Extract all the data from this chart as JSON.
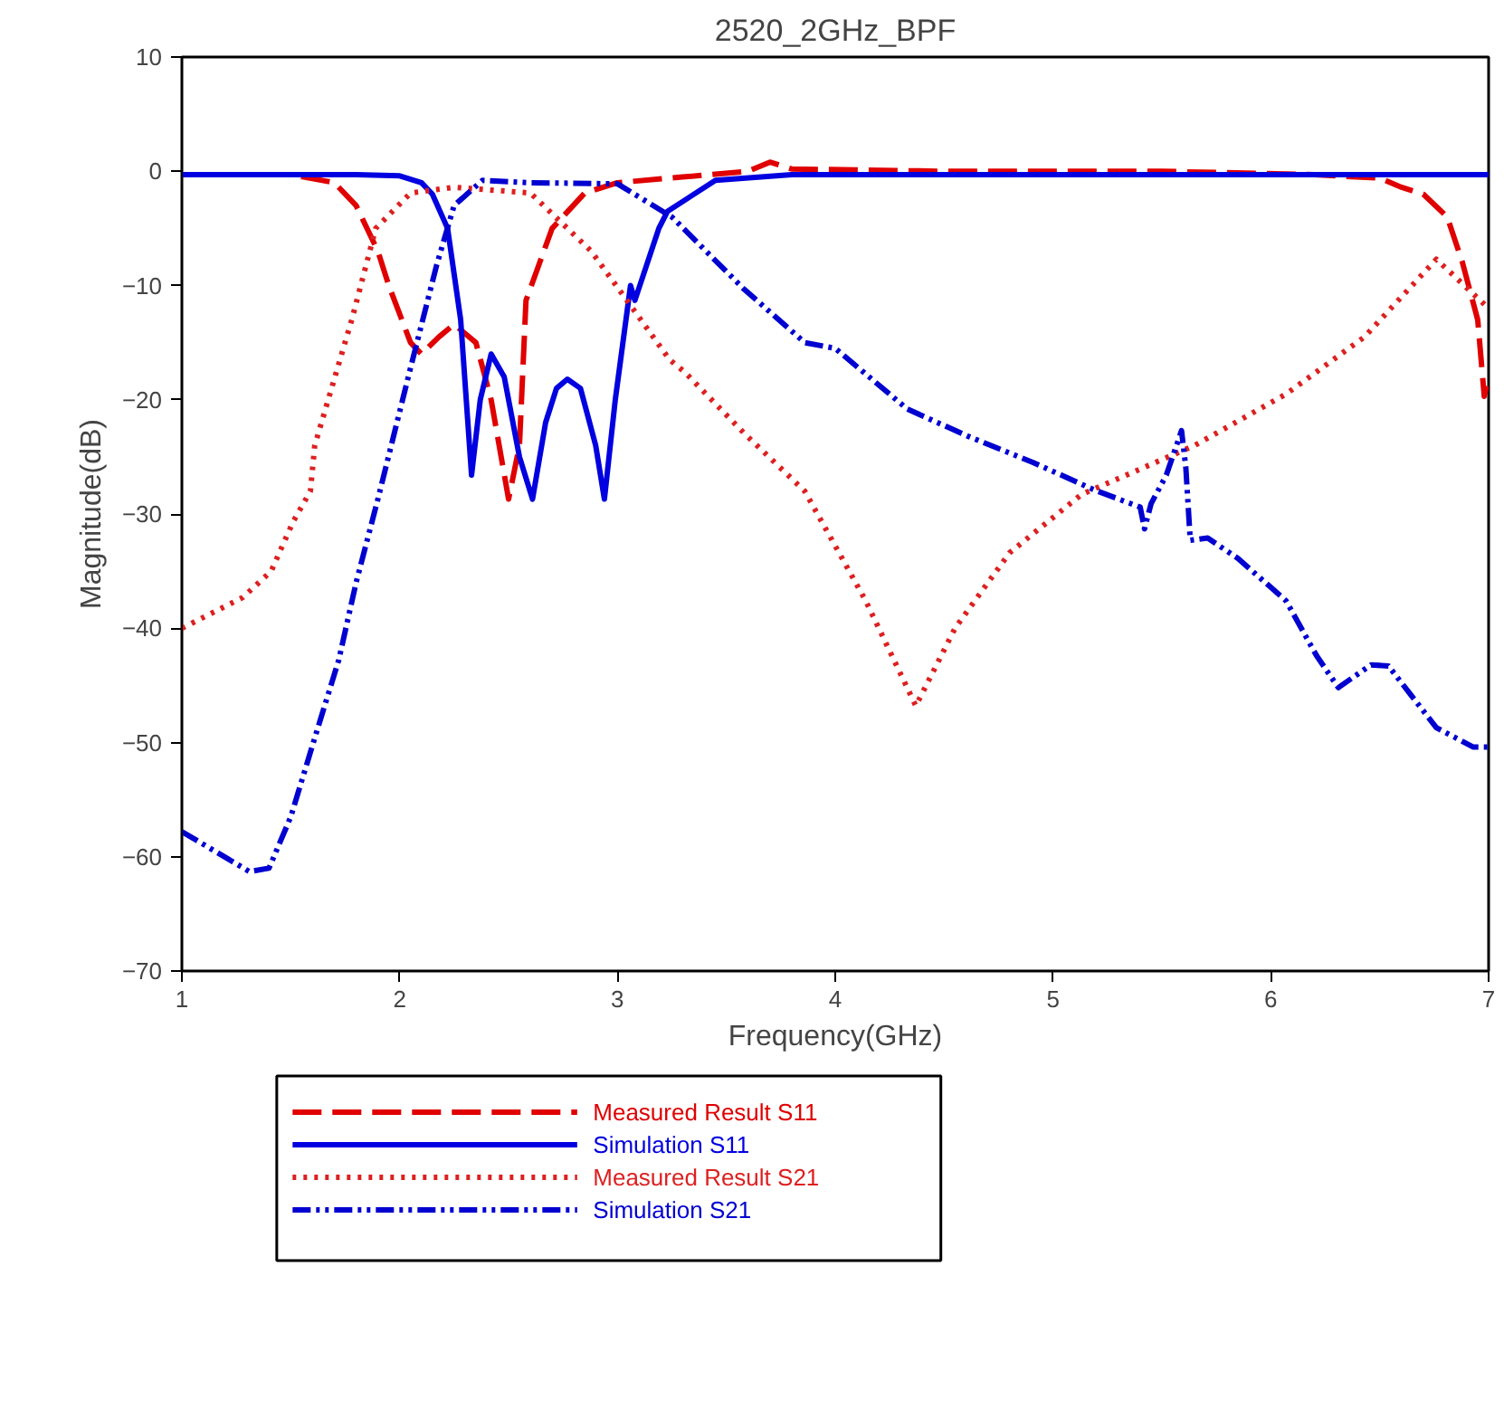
{
  "chart_data": {
    "type": "line",
    "title": "2520_2GHz_BPF",
    "xlabel": "Frequency(GHz)",
    "ylabel": "Magnitude(dB)",
    "xlim": [
      1,
      7
    ],
    "ylim": [
      -70,
      10
    ],
    "xticks": [
      1,
      2,
      3,
      4,
      5,
      6,
      7
    ],
    "yticks": [
      -70,
      -60,
      -50,
      -40,
      -30,
      -20,
      -10,
      0,
      10
    ],
    "grid": false,
    "legend": "bottom left",
    "marker": "none",
    "series": [
      {
        "name": "Measured Result S11",
        "color": "#e00000",
        "line_style": "dashed",
        "x": [
          1,
          1.5,
          1.7,
          1.8,
          1.9,
          1.95,
          2.05,
          2.1,
          2.18,
          2.25,
          2.35,
          2.42,
          2.5,
          2.55,
          2.58,
          2.7,
          2.85,
          3.0,
          3.3,
          3.6,
          3.7,
          3.8,
          4.5,
          5.5,
          6.2,
          6.5,
          6.6,
          6.7,
          6.81,
          6.88,
          6.95,
          6.98,
          7.0
        ],
        "values": [
          -0.3,
          -0.3,
          -1,
          -3,
          -7,
          -10,
          -15,
          -16,
          -14.5,
          -13.4,
          -15,
          -20,
          -28.7,
          -24,
          -11.3,
          -5,
          -1.9,
          -1,
          -0.5,
          0,
          0.8,
          0.2,
          0,
          0,
          -0.3,
          -0.6,
          -1.4,
          -2,
          -4,
          -8,
          -13,
          -19.7,
          -18
        ]
      },
      {
        "name": "Simulation S11",
        "color": "#0000e0",
        "line_style": "solid",
        "x": [
          1,
          1.8,
          2.0,
          2.1,
          2.15,
          2.22,
          2.28,
          2.33,
          2.37,
          2.42,
          2.48,
          2.55,
          2.61,
          2.67,
          2.72,
          2.77,
          2.83,
          2.9,
          2.94,
          2.99,
          3.06,
          3.08,
          3.19,
          3.23,
          3.45,
          3.8,
          5,
          7
        ],
        "values": [
          -0.3,
          -0.3,
          -0.4,
          -1,
          -2,
          -5,
          -13,
          -26.6,
          -20,
          -16,
          -18,
          -25,
          -28.7,
          -22,
          -19,
          -18.2,
          -19,
          -24,
          -28.7,
          -20,
          -10,
          -11.3,
          -5,
          -3.5,
          -0.8,
          -0.3,
          -0.3,
          -0.3
        ]
      },
      {
        "name": "Measured Result S21",
        "color": "#dd2020",
        "line_style": "dotted",
        "x": [
          1,
          1.28,
          1.41,
          1.51,
          1.59,
          1.61,
          1.78,
          1.89,
          2.05,
          2.25,
          2.6,
          2.88,
          3.24,
          3.31,
          3.58,
          3.86,
          4.14,
          4.37,
          4.55,
          4.8,
          5.13,
          5.65,
          6.07,
          6.43,
          6.76,
          7.0
        ],
        "values": [
          -40,
          -37.3,
          -35,
          -30.7,
          -28,
          -24,
          -13,
          -5,
          -1.9,
          -1.4,
          -1.9,
          -7,
          -16.5,
          -17.6,
          -22.9,
          -28,
          -37.6,
          -46.8,
          -40,
          -33.4,
          -28.3,
          -24,
          -19.5,
          -14.5,
          -7.7,
          -12
        ]
      },
      {
        "name": "Simulation S21",
        "color": "#0000d0",
        "line_style": "dashdotdot",
        "x": [
          1.0,
          1.31,
          1.4,
          1.5,
          1.61,
          1.72,
          1.8,
          1.9,
          2.05,
          2.17,
          2.25,
          2.38,
          2.6,
          3.0,
          3.25,
          3.58,
          3.86,
          4.0,
          4.33,
          4.61,
          4.91,
          5.19,
          5.4,
          5.42,
          5.45,
          5.52,
          5.59,
          5.61,
          5.63,
          5.71,
          5.85,
          6.07,
          6.21,
          6.31,
          6.46,
          6.54,
          6.76,
          6.93,
          7.0
        ],
        "values": [
          -57.8,
          -61.3,
          -61,
          -56.5,
          -49.6,
          -42.8,
          -36,
          -28.7,
          -17.2,
          -8.2,
          -3,
          -0.8,
          -1,
          -1.1,
          -4,
          -10.3,
          -15,
          -15.5,
          -20.8,
          -23.2,
          -25.5,
          -27.9,
          -29.4,
          -31.3,
          -29.1,
          -26.6,
          -22.7,
          -26,
          -32.3,
          -32.1,
          -33.9,
          -37.6,
          -42.4,
          -45.2,
          -43.2,
          -43.3,
          -48.7,
          -50.4,
          -50.4
        ]
      }
    ]
  }
}
